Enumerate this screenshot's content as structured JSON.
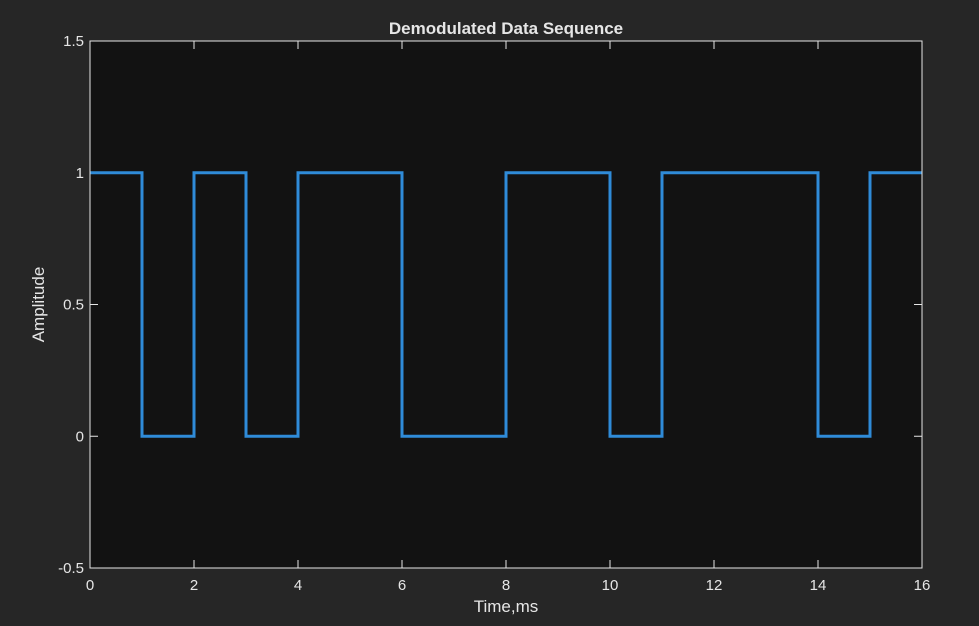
{
  "chart_data": {
    "type": "line",
    "title": "Demodulated Data Sequence",
    "xlabel": "Time,ms",
    "ylabel": "Amplitude",
    "xlim": [
      0,
      16
    ],
    "ylim": [
      -0.5,
      1.5
    ],
    "xticks": [
      0,
      2,
      4,
      6,
      8,
      10,
      12,
      14,
      16
    ],
    "yticks": [
      -0.5,
      0,
      0.5,
      1,
      1.5
    ],
    "xtick_labels": [
      "0",
      "2",
      "4",
      "6",
      "8",
      "10",
      "12",
      "14",
      "16"
    ],
    "ytick_labels": [
      "-0.5",
      "0",
      "0.5",
      "1",
      "1.5"
    ],
    "grid": false,
    "series": [
      {
        "style": "step",
        "color": "#2f8bd8",
        "x": [
          0,
          1,
          1,
          2,
          2,
          3,
          3,
          4,
          4,
          6,
          6,
          8,
          8,
          10,
          10,
          11,
          11,
          14,
          14,
          15,
          15,
          16
        ],
        "y": [
          1,
          1,
          0,
          0,
          1,
          1,
          0,
          0,
          1,
          1,
          0,
          0,
          1,
          1,
          0,
          0,
          1,
          1,
          0,
          0,
          1,
          1
        ]
      }
    ],
    "colors": {
      "figure_background": "#262626",
      "axes_background": "#121212",
      "axes_color": "#e6e6e6"
    }
  }
}
